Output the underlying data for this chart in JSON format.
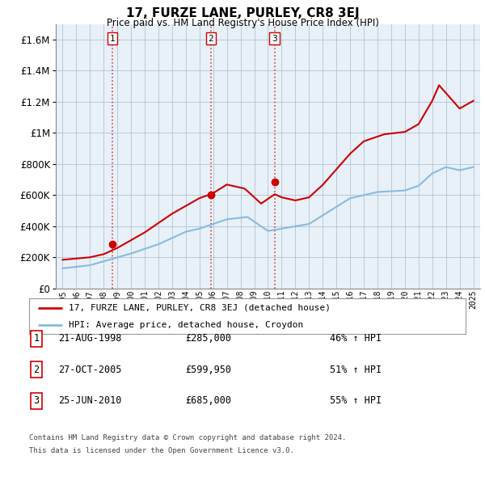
{
  "title": "17, FURZE LANE, PURLEY, CR8 3EJ",
  "subtitle": "Price paid vs. HM Land Registry's House Price Index (HPI)",
  "legend_line1": "17, FURZE LANE, PURLEY, CR8 3EJ (detached house)",
  "legend_line2": "HPI: Average price, detached house, Croydon",
  "sale_color": "#cc0000",
  "hpi_color": "#88bbdd",
  "sale_points": [
    {
      "year": 1998.64,
      "price": 285000,
      "label": "1"
    },
    {
      "year": 2005.82,
      "price": 599950,
      "label": "2"
    },
    {
      "year": 2010.48,
      "price": 685000,
      "label": "3"
    }
  ],
  "table_rows": [
    {
      "num": "1",
      "date": "21-AUG-1998",
      "price": "£285,000",
      "hpi": "46% ↑ HPI"
    },
    {
      "num": "2",
      "date": "27-OCT-2005",
      "price": "£599,950",
      "hpi": "51% ↑ HPI"
    },
    {
      "num": "3",
      "date": "25-JUN-2010",
      "price": "£685,000",
      "hpi": "55% ↑ HPI"
    }
  ],
  "footnote1": "Contains HM Land Registry data © Crown copyright and database right 2024.",
  "footnote2": "This data is licensed under the Open Government Licence v3.0.",
  "ylim": [
    0,
    1700000
  ],
  "yticks": [
    0,
    200000,
    400000,
    600000,
    800000,
    1000000,
    1200000,
    1400000,
    1600000
  ],
  "xmin": 1994.5,
  "xmax": 2025.5,
  "background_color": "#ffffff",
  "chart_bg": "#e8f0f8",
  "grid_color": "#aabbcc",
  "vline_color": "#cc4444",
  "sale_vlines": [
    1998.64,
    2005.82,
    2010.48
  ],
  "years": [
    1995,
    1995.083,
    1995.167,
    1995.25,
    1995.333,
    1995.417,
    1995.5,
    1995.583,
    1995.667,
    1995.75,
    1995.833,
    1995.917,
    1996,
    1996.083,
    1996.167,
    1996.25,
    1996.333,
    1996.417,
    1996.5,
    1996.583,
    1996.667,
    1996.75,
    1996.833,
    1996.917,
    1997,
    1997.083,
    1997.167,
    1997.25,
    1997.333,
    1997.417,
    1997.5,
    1997.583,
    1997.667,
    1997.75,
    1997.833,
    1997.917,
    1998,
    1998.083,
    1998.167,
    1998.25,
    1998.333,
    1998.417,
    1998.5,
    1998.583,
    1998.667,
    1998.75,
    1998.833,
    1998.917,
    1999,
    1999.083,
    1999.167,
    1999.25,
    1999.333,
    1999.417,
    1999.5,
    1999.583,
    1999.667,
    1999.75,
    1999.833,
    1999.917,
    2000,
    2000.083,
    2000.167,
    2000.25,
    2000.333,
    2000.417,
    2000.5,
    2000.583,
    2000.667,
    2000.75,
    2000.833,
    2000.917,
    2001,
    2001.083,
    2001.167,
    2001.25,
    2001.333,
    2001.417,
    2001.5,
    2001.583,
    2001.667,
    2001.75,
    2001.833,
    2001.917,
    2002,
    2002.083,
    2002.167,
    2002.25,
    2002.333,
    2002.417,
    2002.5,
    2002.583,
    2002.667,
    2002.75,
    2002.833,
    2002.917,
    2003,
    2003.083,
    2003.167,
    2003.25,
    2003.333,
    2003.417,
    2003.5,
    2003.583,
    2003.667,
    2003.75,
    2003.833,
    2003.917,
    2004,
    2004.083,
    2004.167,
    2004.25,
    2004.333,
    2004.417,
    2004.5,
    2004.583,
    2004.667,
    2004.75,
    2004.833,
    2004.917,
    2005,
    2005.083,
    2005.167,
    2005.25,
    2005.333,
    2005.417,
    2005.5,
    2005.583,
    2005.667,
    2005.75,
    2005.833,
    2005.917,
    2006,
    2006.083,
    2006.167,
    2006.25,
    2006.333,
    2006.417,
    2006.5,
    2006.583,
    2006.667,
    2006.75,
    2006.833,
    2006.917,
    2007,
    2007.083,
    2007.167,
    2007.25,
    2007.333,
    2007.417,
    2007.5,
    2007.583,
    2007.667,
    2007.75,
    2007.833,
    2007.917,
    2008,
    2008.083,
    2008.167,
    2008.25,
    2008.333,
    2008.417,
    2008.5,
    2008.583,
    2008.667,
    2008.75,
    2008.833,
    2008.917,
    2009,
    2009.083,
    2009.167,
    2009.25,
    2009.333,
    2009.417,
    2009.5,
    2009.583,
    2009.667,
    2009.75,
    2009.833,
    2009.917,
    2010,
    2010.083,
    2010.167,
    2010.25,
    2010.333,
    2010.417,
    2010.5,
    2010.583,
    2010.667,
    2010.75,
    2010.833,
    2010.917,
    2011,
    2011.083,
    2011.167,
    2011.25,
    2011.333,
    2011.417,
    2011.5,
    2011.583,
    2011.667,
    2011.75,
    2011.833,
    2011.917,
    2012,
    2012.083,
    2012.167,
    2012.25,
    2012.333,
    2012.417,
    2012.5,
    2012.583,
    2012.667,
    2012.75,
    2012.833,
    2012.917,
    2013,
    2013.083,
    2013.167,
    2013.25,
    2013.333,
    2013.417,
    2013.5,
    2013.583,
    2013.667,
    2013.75,
    2013.833,
    2013.917,
    2014,
    2014.083,
    2014.167,
    2014.25,
    2014.333,
    2014.417,
    2014.5,
    2014.583,
    2014.667,
    2014.75,
    2014.833,
    2014.917,
    2015,
    2015.083,
    2015.167,
    2015.25,
    2015.333,
    2015.417,
    2015.5,
    2015.583,
    2015.667,
    2015.75,
    2015.833,
    2015.917,
    2016,
    2016.083,
    2016.167,
    2016.25,
    2016.333,
    2016.417,
    2016.5,
    2016.583,
    2016.667,
    2016.75,
    2016.833,
    2016.917,
    2017,
    2017.083,
    2017.167,
    2017.25,
    2017.333,
    2017.417,
    2017.5,
    2017.583,
    2017.667,
    2017.75,
    2017.833,
    2017.917,
    2018,
    2018.083,
    2018.167,
    2018.25,
    2018.333,
    2018.417,
    2018.5,
    2018.583,
    2018.667,
    2018.75,
    2018.833,
    2018.917,
    2019,
    2019.083,
    2019.167,
    2019.25,
    2019.333,
    2019.417,
    2019.5,
    2019.583,
    2019.667,
    2019.75,
    2019.833,
    2019.917,
    2020,
    2020.083,
    2020.167,
    2020.25,
    2020.333,
    2020.417,
    2020.5,
    2020.583,
    2020.667,
    2020.75,
    2020.833,
    2020.917,
    2021,
    2021.083,
    2021.167,
    2021.25,
    2021.333,
    2021.417,
    2021.5,
    2021.583,
    2021.667,
    2021.75,
    2021.833,
    2021.917,
    2022,
    2022.083,
    2022.167,
    2022.25,
    2022.333,
    2022.417,
    2022.5,
    2022.583,
    2022.667,
    2022.75,
    2022.833,
    2022.917,
    2023,
    2023.083,
    2023.167,
    2023.25,
    2023.333,
    2023.417,
    2023.5,
    2023.583,
    2023.667,
    2023.75,
    2023.833,
    2023.917,
    2024,
    2024.083,
    2024.167,
    2024.25,
    2024.333,
    2024.417,
    2024.5,
    2024.583,
    2024.667,
    2024.75,
    2024.833,
    2024.917,
    2025
  ]
}
